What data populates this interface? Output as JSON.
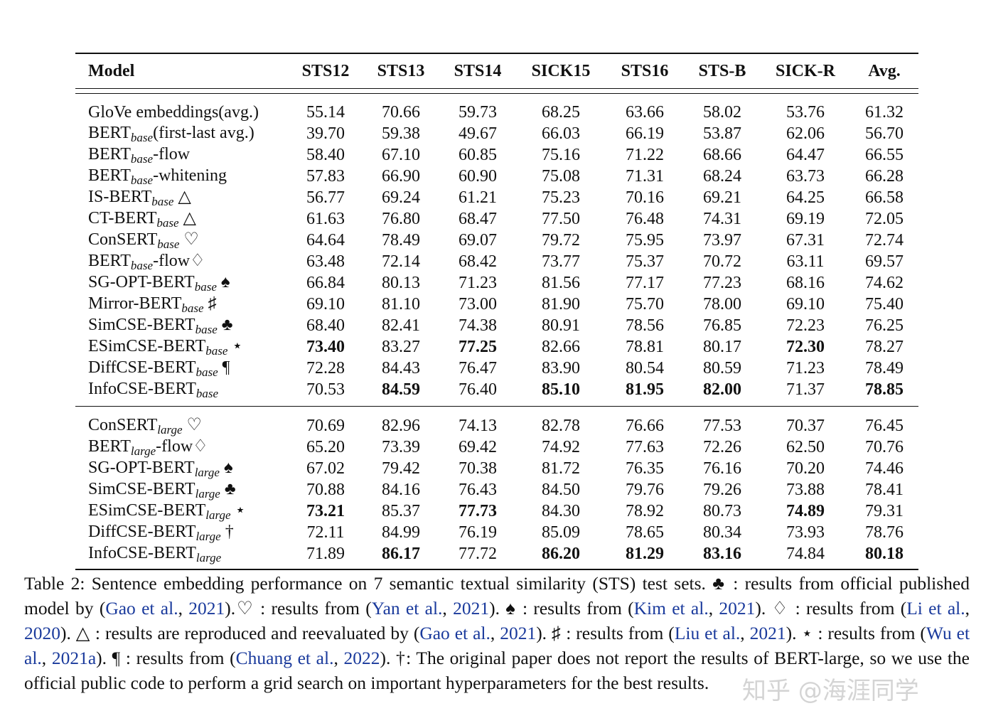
{
  "table": {
    "headers": [
      "Model",
      "STS12",
      "STS13",
      "STS14",
      "SICK15",
      "STS16",
      "STS-B",
      "SICK-R",
      "Avg."
    ],
    "groups": [
      {
        "rows": [
          {
            "name": "GloVe embeddings(avg.)",
            "sub": "",
            "suffix": "",
            "mark": "",
            "values": [
              "55.14",
              "70.66",
              "59.73",
              "68.25",
              "63.66",
              "58.02",
              "53.76",
              "61.32"
            ],
            "bold": []
          },
          {
            "name": "BERT",
            "sub": "base",
            "suffix": "(first-last avg.)",
            "mark": "",
            "values": [
              "39.70",
              "59.38",
              "49.67",
              "66.03",
              "66.19",
              "53.87",
              "62.06",
              "56.70"
            ],
            "bold": []
          },
          {
            "name": "BERT",
            "sub": "base",
            "suffix": "-flow",
            "mark": "",
            "values": [
              "58.40",
              "67.10",
              "60.85",
              "75.16",
              "71.22",
              "68.66",
              "64.47",
              "66.55"
            ],
            "bold": []
          },
          {
            "name": "BERT",
            "sub": "base",
            "suffix": "-whitening",
            "mark": "",
            "values": [
              "57.83",
              "66.90",
              "60.90",
              "75.08",
              "71.31",
              "68.24",
              "63.73",
              "66.28"
            ],
            "bold": []
          },
          {
            "name": "IS-BERT",
            "sub": "base",
            "suffix": "",
            "mark": "△",
            "values": [
              "56.77",
              "69.24",
              "61.21",
              "75.23",
              "70.16",
              "69.21",
              "64.25",
              "66.58"
            ],
            "bold": []
          },
          {
            "name": "CT-BERT",
            "sub": "base",
            "suffix": "",
            "mark": "△",
            "values": [
              "61.63",
              "76.80",
              "68.47",
              "77.50",
              "76.48",
              "74.31",
              "69.19",
              "72.05"
            ],
            "bold": []
          },
          {
            "name": "ConSERT",
            "sub": "base",
            "suffix": "",
            "mark": "♡",
            "values": [
              "64.64",
              "78.49",
              "69.07",
              "79.72",
              "75.95",
              "73.97",
              "67.31",
              "72.74"
            ],
            "bold": []
          },
          {
            "name": "BERT",
            "sub": "base",
            "suffix": "-flow♢",
            "mark": "",
            "values": [
              "63.48",
              "72.14",
              "68.42",
              "73.77",
              "75.37",
              "70.72",
              "63.11",
              "69.57"
            ],
            "bold": []
          },
          {
            "name": "SG-OPT-BERT",
            "sub": "base",
            "suffix": "",
            "mark": "♠",
            "values": [
              "66.84",
              "80.13",
              "71.23",
              "81.56",
              "77.17",
              "77.23",
              "68.16",
              "74.62"
            ],
            "bold": []
          },
          {
            "name": "Mirror-BERT",
            "sub": "base",
            "suffix": "",
            "mark": "♯",
            "values": [
              "69.10",
              "81.10",
              "73.00",
              "81.90",
              "75.70",
              "78.00",
              "69.10",
              "75.40"
            ],
            "bold": []
          },
          {
            "name": "SimCSE-BERT",
            "sub": "base",
            "suffix": "",
            "mark": "♣",
            "values": [
              "68.40",
              "82.41",
              "74.38",
              "80.91",
              "78.56",
              "76.85",
              "72.23",
              "76.25"
            ],
            "bold": []
          },
          {
            "name": "ESimCSE-BERT",
            "sub": "base",
            "suffix": "",
            "mark": "⋆",
            "values": [
              "73.40",
              "83.27",
              "77.25",
              "82.66",
              "78.81",
              "80.17",
              "72.30",
              "78.27"
            ],
            "bold": [
              0,
              2,
              6
            ]
          },
          {
            "name": "DiffCSE-BERT",
            "sub": "base",
            "suffix": "",
            "mark": "¶",
            "values": [
              "72.28",
              "84.43",
              "76.47",
              "83.90",
              "80.54",
              "80.59",
              "71.23",
              "78.49"
            ],
            "bold": []
          },
          {
            "name": "InfoCSE-BERT",
            "sub": "base",
            "suffix": "",
            "mark": "",
            "values": [
              "70.53",
              "84.59",
              "76.40",
              "85.10",
              "81.95",
              "82.00",
              "71.37",
              "78.85"
            ],
            "bold": [
              1,
              3,
              4,
              5,
              7
            ]
          }
        ]
      },
      {
        "rows": [
          {
            "name": "ConSERT",
            "sub": "large",
            "suffix": "",
            "mark": "♡",
            "values": [
              "70.69",
              "82.96",
              "74.13",
              "82.78",
              "76.66",
              "77.53",
              "70.37",
              "76.45"
            ],
            "bold": []
          },
          {
            "name": "BERT",
            "sub": "large",
            "suffix": "-flow♢",
            "mark": "",
            "values": [
              "65.20",
              "73.39",
              "69.42",
              "74.92",
              "77.63",
              "72.26",
              "62.50",
              "70.76"
            ],
            "bold": []
          },
          {
            "name": "SG-OPT-BERT",
            "sub": "large",
            "suffix": "",
            "mark": "♠",
            "values": [
              "67.02",
              "79.42",
              "70.38",
              "81.72",
              "76.35",
              "76.16",
              "70.20",
              "74.46"
            ],
            "bold": []
          },
          {
            "name": "SimCSE-BERT",
            "sub": "large",
            "suffix": "",
            "mark": "♣",
            "values": [
              "70.88",
              "84.16",
              "76.43",
              "84.50",
              "79.76",
              "79.26",
              "73.88",
              "78.41"
            ],
            "bold": []
          },
          {
            "name": "ESimCSE-BERT",
            "sub": "large",
            "suffix": "",
            "mark": "⋆",
            "values": [
              "73.21",
              "85.37",
              "77.73",
              "84.30",
              "78.92",
              "80.73",
              "74.89",
              "79.31"
            ],
            "bold": [
              0,
              2,
              6
            ]
          },
          {
            "name": "DiffCSE-BERT",
            "sub": "large",
            "suffix": "",
            "mark": "†",
            "values": [
              "72.11",
              "84.99",
              "76.19",
              "85.09",
              "78.65",
              "80.34",
              "73.93",
              "78.76"
            ],
            "bold": []
          },
          {
            "name": "InfoCSE-BERT",
            "sub": "large",
            "suffix": "",
            "mark": "",
            "values": [
              "71.89",
              "86.17",
              "77.72",
              "86.20",
              "81.29",
              "83.16",
              "74.84",
              "80.18"
            ],
            "bold": [
              1,
              3,
              4,
              5,
              7
            ]
          }
        ]
      }
    ]
  },
  "caption": [
    {
      "t": "Table 2: Sentence embedding performance on 7 semantic textual similarity (STS) test sets. ♣ : results from official published model by  ("
    },
    {
      "t": "Gao et al.",
      "c": true
    },
    {
      "t": ", "
    },
    {
      "t": "2021",
      "c": true
    },
    {
      "t": ").♡ : results from  ("
    },
    {
      "t": "Yan et al.",
      "c": true
    },
    {
      "t": ", "
    },
    {
      "t": "2021",
      "c": true
    },
    {
      "t": "). ♠ : results from  ("
    },
    {
      "t": "Kim et al.",
      "c": true
    },
    {
      "t": ", "
    },
    {
      "t": "2021",
      "c": true
    },
    {
      "t": "). ♢ : results from  ("
    },
    {
      "t": "Li et al.",
      "c": true
    },
    {
      "t": ", "
    },
    {
      "t": "2020",
      "c": true
    },
    {
      "t": "). △ : results are reproduced and reevaluated by  ("
    },
    {
      "t": "Gao et al.",
      "c": true
    },
    {
      "t": ", "
    },
    {
      "t": "2021",
      "c": true
    },
    {
      "t": "). ♯ : results from ("
    },
    {
      "t": "Liu et al.",
      "c": true
    },
    {
      "t": ", "
    },
    {
      "t": "2021",
      "c": true
    },
    {
      "t": "). ⋆ : results from  ("
    },
    {
      "t": "Wu et al.",
      "c": true
    },
    {
      "t": ", "
    },
    {
      "t": "2021a",
      "c": true
    },
    {
      "t": "). ¶ : results from  ("
    },
    {
      "t": "Chuang et al.",
      "c": true
    },
    {
      "t": ", "
    },
    {
      "t": "2022",
      "c": true
    },
    {
      "t": "). †: The original paper does not report the results of BERT-large, so we use the official public code to perform a grid search on important hyperparameters for the best results."
    }
  ],
  "watermark": "知乎 @海涯同学"
}
